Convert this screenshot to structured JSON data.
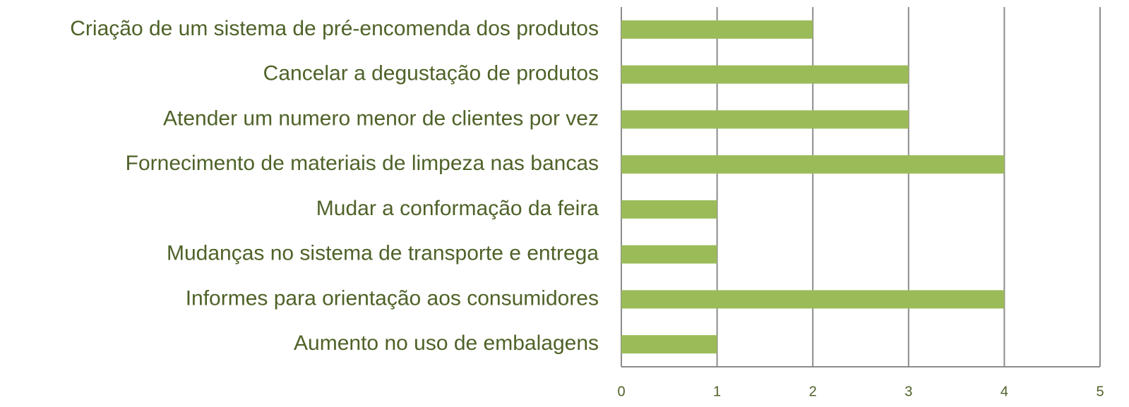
{
  "chart_data": {
    "type": "barh",
    "categories": [
      "Criação de um sistema de pré-encomenda dos produtos",
      "Cancelar a degustação de produtos",
      "Atender um numero menor de clientes por vez",
      "Fornecimento de materiais de limpeza nas bancas",
      "Mudar a conformação da feira",
      "Mudanças no sistema de transporte e entrega",
      "Informes para orientação aos consumidores",
      "Aumento no uso de embalagens"
    ],
    "values": [
      2,
      3,
      3,
      4,
      1,
      1,
      4,
      1
    ],
    "color": "#9bbb59",
    "xlim": [
      0,
      5
    ],
    "xticks": [
      0,
      1,
      2,
      3,
      4,
      5
    ],
    "grid": true
  }
}
